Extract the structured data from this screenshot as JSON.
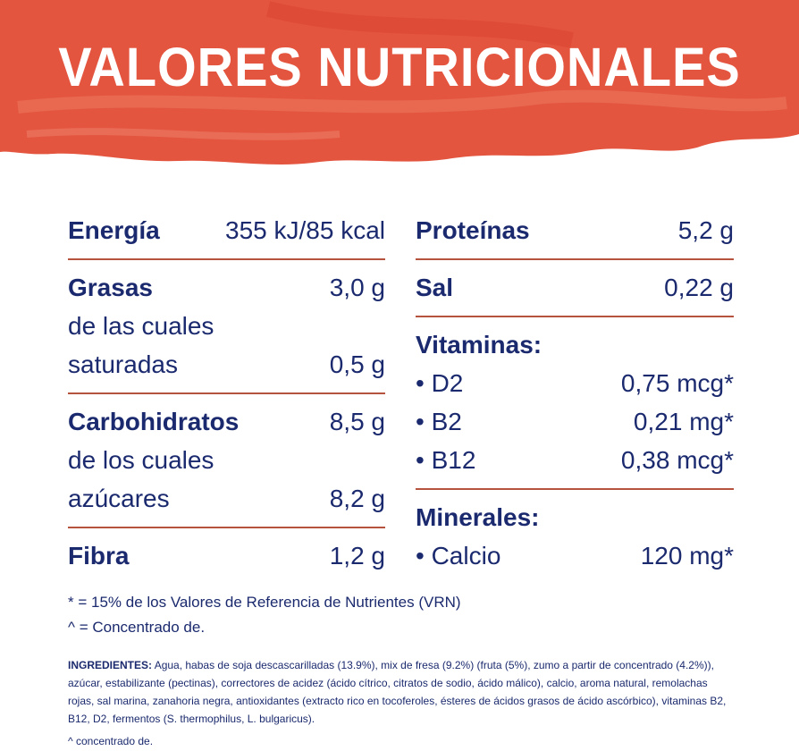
{
  "title": "VALORES NUTRICIONALES",
  "left_groups": [
    {
      "rows": [
        {
          "label": "Energía",
          "value": "355 kJ/85 kcal"
        }
      ]
    },
    {
      "rows": [
        {
          "label": "Grasas",
          "value": "3,0 g"
        },
        {
          "label": "de las cuales"
        },
        {
          "label": "saturadas",
          "value": "0,5 g"
        }
      ]
    },
    {
      "rows": [
        {
          "label": "Carbohidratos",
          "value": "8,5 g"
        },
        {
          "label": "de los cuales"
        },
        {
          "label": "azúcares",
          "value": "8,2 g"
        }
      ]
    },
    {
      "rows": [
        {
          "label": "Fibra",
          "value": "1,2 g"
        }
      ]
    }
  ],
  "right_groups": [
    {
      "rows": [
        {
          "label": "Proteínas",
          "value": "5,2 g"
        }
      ]
    },
    {
      "rows": [
        {
          "label": "Sal",
          "value": "0,22 g"
        }
      ]
    },
    {
      "rows": [
        {
          "label": "Vitaminas:"
        },
        {
          "label": "• D2",
          "value": "0,75 mcg*"
        },
        {
          "label": "• B2",
          "value": "0,21 mg*"
        },
        {
          "label": "• B12",
          "value": "0,38 mcg*"
        }
      ]
    },
    {
      "rows": [
        {
          "label": "Minerales:"
        },
        {
          "label": "• Calcio",
          "value": "120 mg*"
        }
      ]
    }
  ],
  "footnotes": [
    "* = 15% de los Valores de Referencia de Nutrientes (VRN)",
    "^ = Concentrado de."
  ],
  "ingredients": {
    "heading": "INGREDIENTES:",
    "text": "Agua, habas de soja descascarilladas (13.9%), mix de fresa (9.2%) (fruta (5%), zumo a partir de concentrado (4.2%)), azúcar, estabilizante (pectinas), correctores de acidez (ácido cítrico, citratos de sodio, ácido málico), calcio, aroma natural, remolachas rojas, sal marina, zanahoria negra, antioxidantes (extracto rico en tocoferoles, ésteres de ácidos grasos de ácido ascórbico), vitaminas B2, B12, D2, fermentos (S. thermophilus, L. bulgaricus)."
  },
  "bottom_note": "^ concentrado de."
}
